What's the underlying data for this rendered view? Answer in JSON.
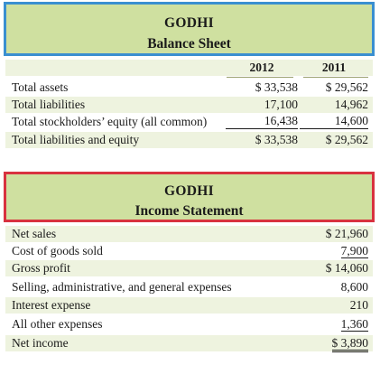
{
  "balance_sheet": {
    "company": "GODHI",
    "title": "Balance Sheet",
    "years": [
      "2012",
      "2011"
    ],
    "rows": [
      {
        "label": "Total assets",
        "y2012": "$ 33,538",
        "y2011": "$ 29,562"
      },
      {
        "label": "Total liabilities",
        "y2012": "17,100",
        "y2011": "14,962"
      },
      {
        "label": "Total stockholders’ equity (all common)",
        "y2012": "16,438",
        "y2011": "14,600"
      },
      {
        "label": "Total liabilities and equity",
        "y2012": "$ 33,538",
        "y2011": "$ 29,562"
      }
    ]
  },
  "income_statement": {
    "company": "GODHI",
    "title": "Income Statement",
    "rows": [
      {
        "label": "Net sales",
        "value": "$ 21,960"
      },
      {
        "label": "Cost of goods sold",
        "value": "7,900"
      },
      {
        "label": "Gross profit",
        "value": "$ 14,060"
      },
      {
        "label": "Selling, administrative, and general expenses",
        "value": "8,600"
      },
      {
        "label": "Interest expense",
        "value": "210"
      },
      {
        "label": "All other expenses",
        "value": "1,360"
      },
      {
        "label": "Net income",
        "value": "$ 3,890"
      }
    ]
  },
  "colors": {
    "header_fill": "#cfe0a0",
    "balance_border": "#3a8fd0",
    "income_border": "#d8323f",
    "band": "#eef3df"
  }
}
